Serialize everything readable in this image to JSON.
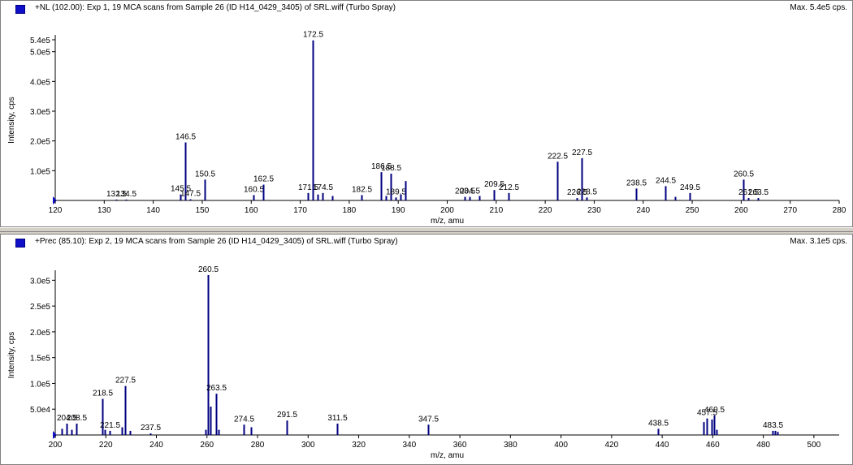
{
  "panels": [
    {
      "title": "+NL (102.00): Exp 1, 19 MCA scans from Sample 26 (ID H14_0429_3405) of SRL.wiff (Turbo Spray)",
      "max": "Max. 5.4e5 cps.",
      "icon": "spectrum-icon"
    },
    {
      "title": "+Prec (85.10): Exp 2, 19 MCA scans from Sample 26 (ID H14_0429_3405) of SRL.wiff (Turbo Spray)",
      "max": "Max. 3.1e5 cps.",
      "icon": "spectrum-icon"
    }
  ],
  "colors": {
    "peak": "#000080",
    "axis": "#000000",
    "background": "#ffffff",
    "frame": "#d4d0c8"
  },
  "chart_data": [
    {
      "type": "bar",
      "title": "+NL (102.00): Exp 1, 19 MCA scans from Sample 26 (ID H14_0429_3405) of SRL.wiff (Turbo Spray)",
      "xlabel": "m/z, amu",
      "ylabel": "Intensity, cps",
      "xlim": [
        120,
        280
      ],
      "ylim": [
        0,
        540000
      ],
      "xticks": [
        120,
        130,
        140,
        150,
        160,
        170,
        180,
        190,
        200,
        210,
        220,
        230,
        240,
        250,
        260,
        270,
        280
      ],
      "yticks": [
        {
          "v": 100000,
          "t": "1.0e5"
        },
        {
          "v": 200000,
          "t": "2.0e5"
        },
        {
          "v": 300000,
          "t": "3.0e5"
        },
        {
          "v": 400000,
          "t": "4.0e5"
        },
        {
          "v": 500000,
          "t": "5.0e5"
        },
        {
          "v": 540000,
          "t": "5.4e5"
        }
      ],
      "peaks": [
        {
          "x": 132.5,
          "y": 3000,
          "label": "132.5"
        },
        {
          "x": 134.5,
          "y": 3000,
          "label": "134.5"
        },
        {
          "x": 145.5,
          "y": 20000,
          "label": "145.5"
        },
        {
          "x": 146.5,
          "y": 195000,
          "label": "146.5"
        },
        {
          "x": 147.5,
          "y": 4000,
          "label": "147.5"
        },
        {
          "x": 150.5,
          "y": 70000,
          "label": "150.5"
        },
        {
          "x": 160.5,
          "y": 18000,
          "label": "160.5"
        },
        {
          "x": 162.5,
          "y": 53000,
          "label": "162.5"
        },
        {
          "x": 171.5,
          "y": 25000,
          "label": "171.5"
        },
        {
          "x": 172.5,
          "y": 538000,
          "label": "172.5"
        },
        {
          "x": 173.5,
          "y": 20000
        },
        {
          "x": 174.5,
          "y": 25000,
          "label": "174.5"
        },
        {
          "x": 176.5,
          "y": 15000
        },
        {
          "x": 182.5,
          "y": 18000,
          "label": "182.5"
        },
        {
          "x": 186.5,
          "y": 95000,
          "label": "186.5"
        },
        {
          "x": 187.5,
          "y": 15000
        },
        {
          "x": 188.5,
          "y": 90000,
          "label": "188.5"
        },
        {
          "x": 189.5,
          "y": 10000,
          "label": "189.5"
        },
        {
          "x": 190.5,
          "y": 20000
        },
        {
          "x": 191.5,
          "y": 65000
        },
        {
          "x": 203.5,
          "y": 12000,
          "label": "203.5"
        },
        {
          "x": 204.5,
          "y": 12000,
          "label": "204.5"
        },
        {
          "x": 206.5,
          "y": 15000
        },
        {
          "x": 209.5,
          "y": 35000,
          "label": "209.5"
        },
        {
          "x": 212.5,
          "y": 25000,
          "label": "212.5"
        },
        {
          "x": 222.5,
          "y": 130000,
          "label": "222.5"
        },
        {
          "x": 226.5,
          "y": 8000,
          "label": "226.5"
        },
        {
          "x": 227.5,
          "y": 142000,
          "label": "227.5"
        },
        {
          "x": 228.5,
          "y": 10000,
          "label": "228.5"
        },
        {
          "x": 238.5,
          "y": 40000,
          "label": "238.5"
        },
        {
          "x": 244.5,
          "y": 48000,
          "label": "244.5"
        },
        {
          "x": 246.5,
          "y": 12000
        },
        {
          "x": 249.5,
          "y": 25000,
          "label": "249.5"
        },
        {
          "x": 260.5,
          "y": 70000,
          "label": "260.5"
        },
        {
          "x": 261.5,
          "y": 8000,
          "label": "261.5"
        },
        {
          "x": 263.5,
          "y": 8000,
          "label": "263.5"
        }
      ]
    },
    {
      "type": "bar",
      "title": "+Prec (85.10): Exp 2, 19 MCA scans from Sample 26 (ID H14_0429_3405) of SRL.wiff (Turbo Spray)",
      "xlabel": "m/z, amu",
      "ylabel": "Intensity, cps",
      "xlim": [
        200,
        510
      ],
      "ylim": [
        0,
        310000
      ],
      "xticks": [
        200,
        220,
        240,
        260,
        280,
        300,
        320,
        340,
        360,
        380,
        400,
        420,
        440,
        460,
        480,
        500
      ],
      "yticks": [
        {
          "v": 50000,
          "t": "5.0e4"
        },
        {
          "v": 100000,
          "t": "1.0e5"
        },
        {
          "v": 150000,
          "t": "1.5e5"
        },
        {
          "v": 200000,
          "t": "2.0e5"
        },
        {
          "v": 250000,
          "t": "2.5e5"
        },
        {
          "v": 300000,
          "t": "3.0e5"
        }
      ],
      "peaks": [
        {
          "x": 202.5,
          "y": 12000
        },
        {
          "x": 204.5,
          "y": 22000,
          "label": "204.5"
        },
        {
          "x": 206.5,
          "y": 10000
        },
        {
          "x": 208.5,
          "y": 22000,
          "label": "208.5"
        },
        {
          "x": 218.5,
          "y": 70000,
          "label": "218.5"
        },
        {
          "x": 219.5,
          "y": 10000
        },
        {
          "x": 221.5,
          "y": 8000,
          "label": "221.5"
        },
        {
          "x": 226.5,
          "y": 15000
        },
        {
          "x": 227.5,
          "y": 95000,
          "label": "227.5"
        },
        {
          "x": 229.5,
          "y": 8000
        },
        {
          "x": 237.5,
          "y": 3000,
          "label": "237.5"
        },
        {
          "x": 259.5,
          "y": 10000
        },
        {
          "x": 260.5,
          "y": 310000,
          "label": "260.5"
        },
        {
          "x": 261.5,
          "y": 55000
        },
        {
          "x": 263.5,
          "y": 80000,
          "label": "263.5"
        },
        {
          "x": 264.5,
          "y": 10000
        },
        {
          "x": 274.5,
          "y": 20000,
          "label": "274.5"
        },
        {
          "x": 277.5,
          "y": 15000
        },
        {
          "x": 291.5,
          "y": 28000,
          "label": "291.5"
        },
        {
          "x": 311.5,
          "y": 22000,
          "label": "311.5"
        },
        {
          "x": 347.5,
          "y": 20000,
          "label": "347.5"
        },
        {
          "x": 438.5,
          "y": 12000,
          "label": "438.5"
        },
        {
          "x": 456.5,
          "y": 25000
        },
        {
          "x": 457.5,
          "y": 32000,
          "label": "457.5"
        },
        {
          "x": 459.5,
          "y": 30000
        },
        {
          "x": 460.5,
          "y": 38000,
          "label": "460.5"
        },
        {
          "x": 461.5,
          "y": 10000
        },
        {
          "x": 483.5,
          "y": 8000,
          "label": "483.5"
        },
        {
          "x": 484.5,
          "y": 8000
        },
        {
          "x": 485.5,
          "y": 6000
        }
      ]
    }
  ]
}
